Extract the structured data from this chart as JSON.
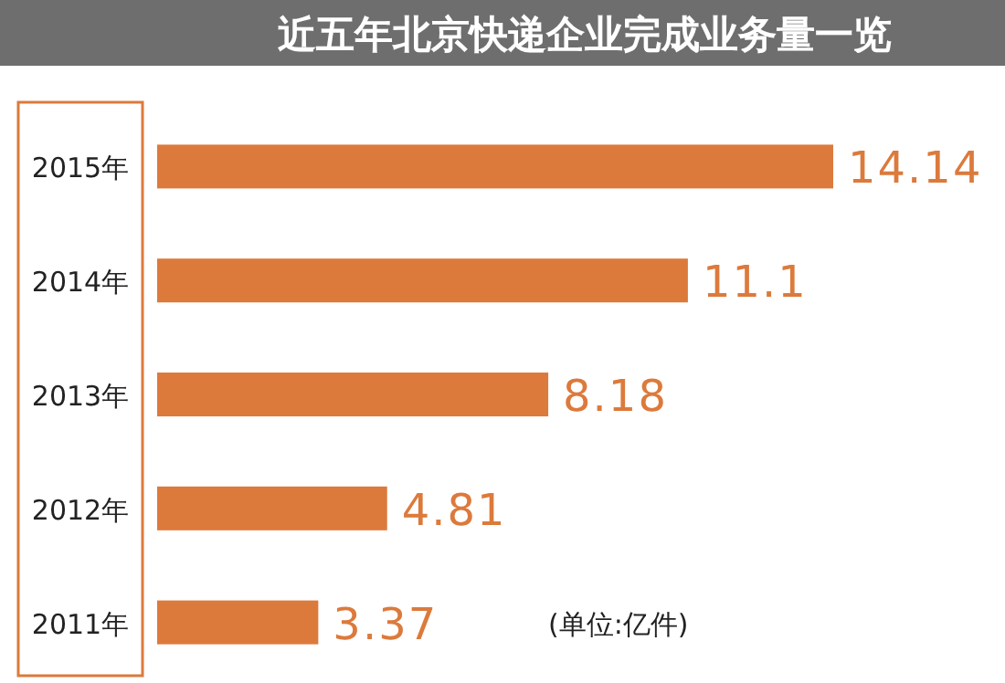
{
  "chart_data": {
    "type": "bar",
    "orientation": "horizontal",
    "title": "近五年北京快递企业完成业务量一览",
    "categories": [
      "2015年",
      "2014年",
      "2013年",
      "2012年",
      "2011年"
    ],
    "values": [
      14.14,
      11.1,
      8.18,
      4.81,
      3.37
    ],
    "color": "#dc7a3c",
    "data_labels": true,
    "annotations": [
      "(单位:亿件)"
    ]
  }
}
